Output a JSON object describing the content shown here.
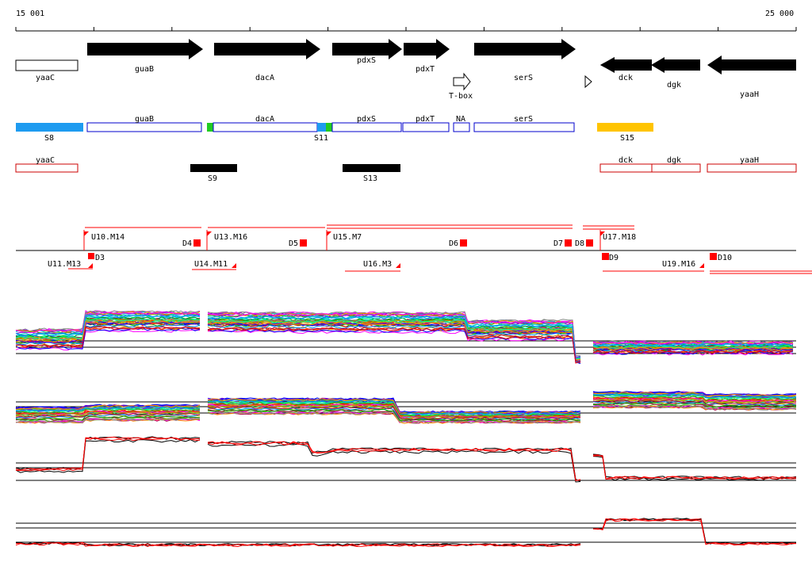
{
  "axis": {
    "start_label": "15 001",
    "end_label": "25 000"
  },
  "colors": {
    "gene_fill": "#000000",
    "blue_box": "#0000cc",
    "red_box": "#cc0000",
    "region_blue": "#1e9bf0",
    "region_green": "#22cc22",
    "region_yellow": "#ffc400",
    "region_black": "#000000",
    "marker_red": "#ff0000"
  },
  "genes": {
    "yaaC": "yaaC",
    "guaB": "guaB",
    "dacA": "dacA",
    "pdxS": "pdxS",
    "pdxT": "pdxT",
    "tbox": "T-box",
    "serS": "serS",
    "dck": "dck",
    "dgk": "dgk",
    "yaaH": "yaaH"
  },
  "transcripts": {
    "guaB": "guaB",
    "dacA": "dacA",
    "pdxS": "pdxS",
    "pdxT": "pdxT",
    "NA": "NA",
    "serS": "serS"
  },
  "regions": {
    "S8": "S8",
    "S11": "S11",
    "S15": "S15",
    "S9": "S9",
    "S13": "S13"
  },
  "red_boxes": {
    "yaaC": "yaaC",
    "dck": "dck",
    "dgk": "dgk",
    "yaaH": "yaaH"
  },
  "markers": {
    "U10": "U10.M14",
    "U13": "U13.M16",
    "U15": "U15.M7",
    "U17": "U17.M18",
    "U11": "U11.M13",
    "U14": "U14.M11",
    "U16": "U16.M3",
    "U19": "U19.M16",
    "D3": "D3",
    "D4": "D4",
    "D5": "D5",
    "D6": "D6",
    "D7": "D7",
    "D8": "D8",
    "D9": "D9",
    "D10": "D10"
  },
  "tracks": {
    "count": 4,
    "line_color_primary": "#000000",
    "line_color_secondary": "#ff0000"
  }
}
